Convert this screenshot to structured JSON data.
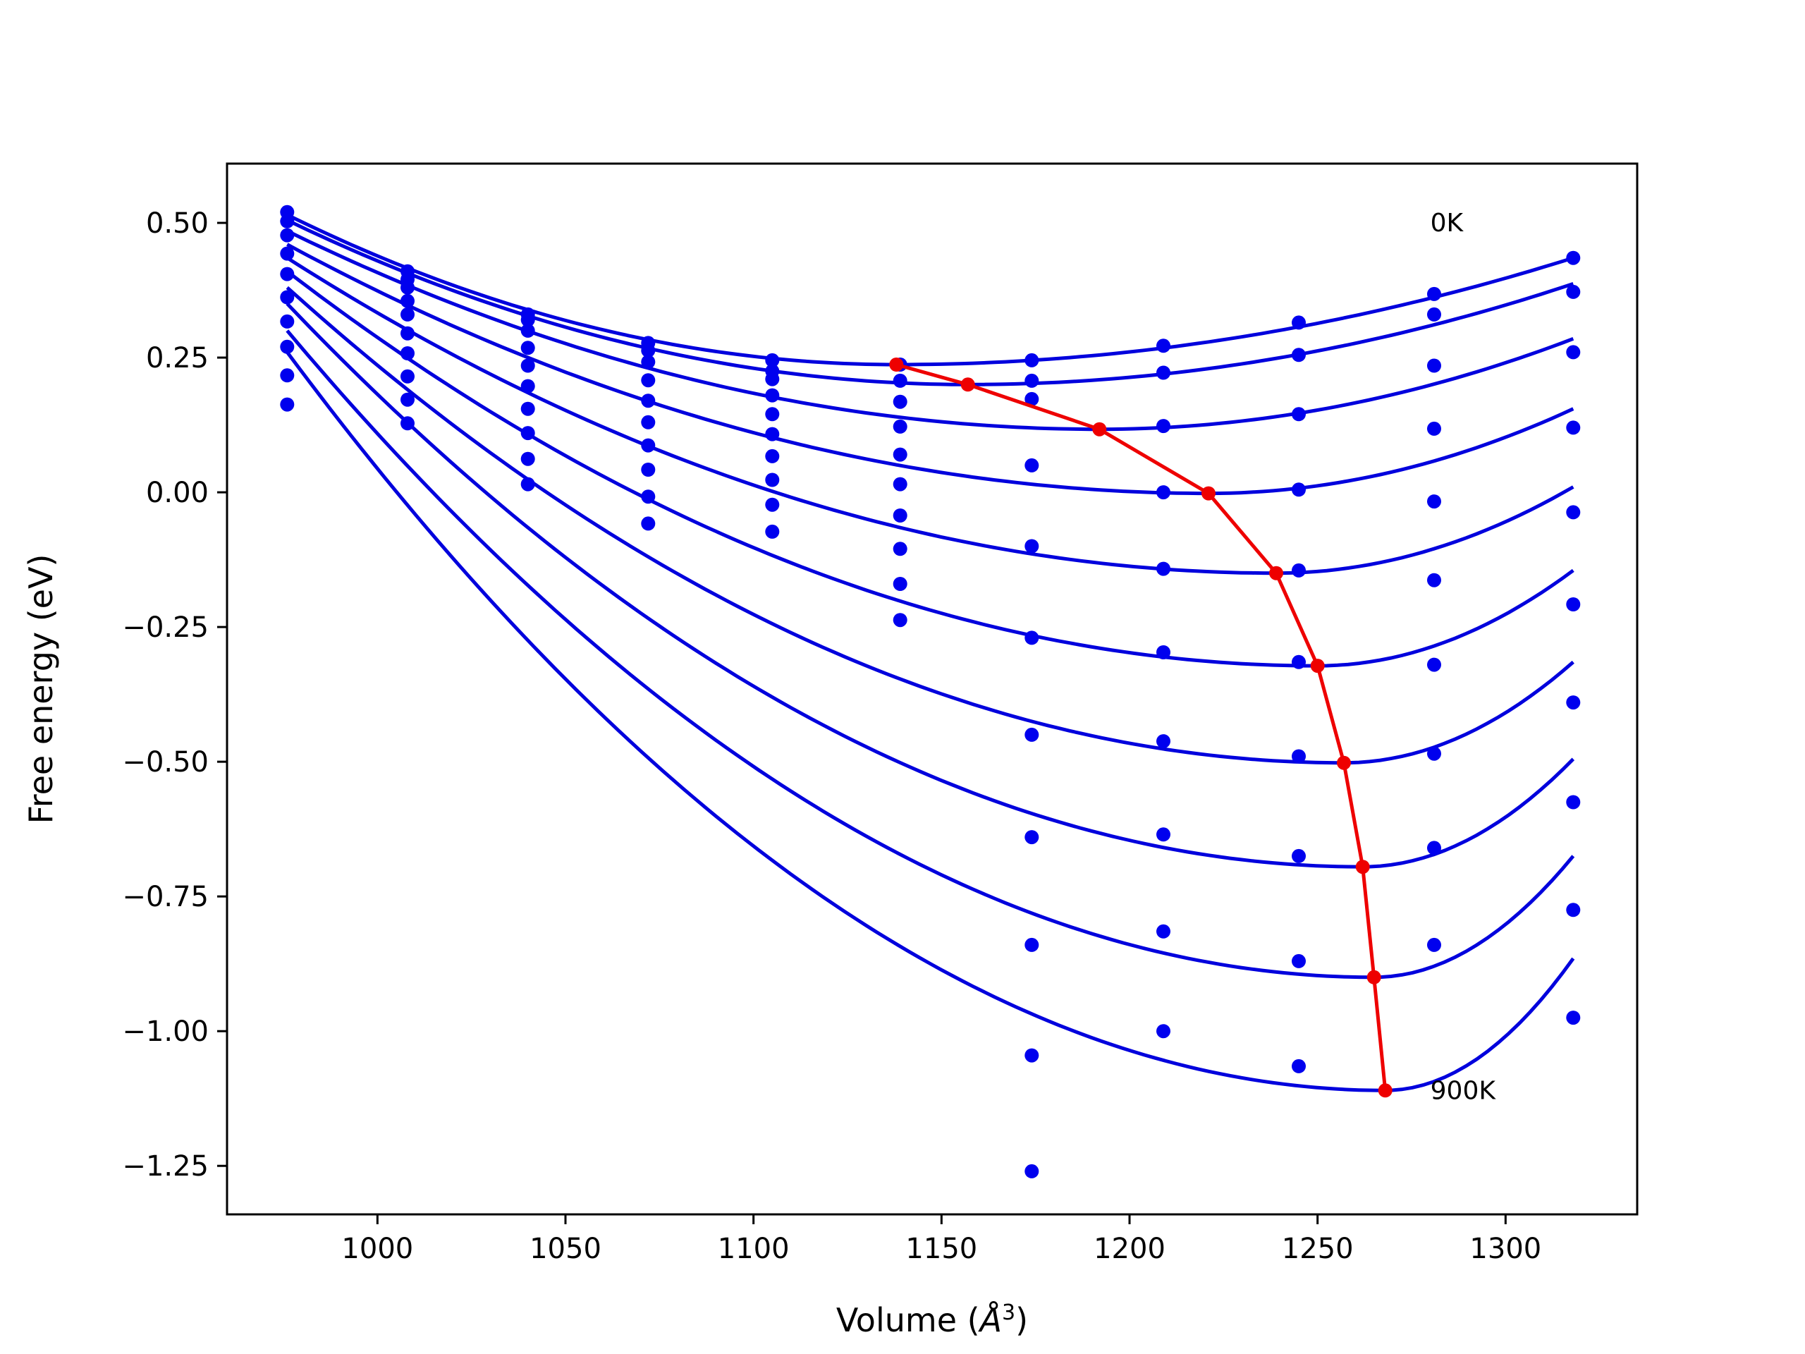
{
  "chart_data": {
    "type": "scatter",
    "title": "",
    "xlabel": "Volume (",
    "xlabel_unit": "Å",
    "xlabel_exp": "3",
    "xlabel_close": ")",
    "ylabel": "Free energy (eV)",
    "xlim": [
      960,
      1335
    ],
    "ylim": [
      -1.34,
      0.61
    ],
    "xticks": [
      1000,
      1050,
      1100,
      1150,
      1200,
      1250,
      1300
    ],
    "yticks": [
      0.5,
      0.25,
      0.0,
      -0.25,
      -0.5,
      -0.75,
      -1.0,
      -1.25
    ],
    "ytick_labels": [
      "0.50",
      "0.25",
      "0.00",
      "−0.25",
      "−0.50",
      "−0.75",
      "−1.00",
      "−1.25"
    ],
    "grid": false,
    "annotations": [
      {
        "text": "0K",
        "x": 1280,
        "y": 0.5
      },
      {
        "text": "900K",
        "x": 1280,
        "y": -1.11
      }
    ],
    "colors": {
      "fit_curves": "#0000dd",
      "points": "#0000ee",
      "minimum_path": "#ee0000"
    },
    "volumes": [
      976,
      1008,
      1040,
      1072,
      1105,
      1139,
      1174,
      1209,
      1245,
      1281,
      1318
    ],
    "series": [
      {
        "label": "0K",
        "values": [
          0.52,
          0.41,
          0.33,
          0.277,
          0.245,
          0.237,
          0.245,
          0.272,
          0.315,
          0.368,
          0.435
        ]
      },
      {
        "values": [
          0.503,
          0.395,
          0.32,
          0.263,
          0.225,
          0.207,
          0.207,
          0.222,
          0.255,
          0.33,
          0.372
        ]
      },
      {
        "values": [
          0.477,
          0.38,
          0.3,
          0.242,
          0.21,
          0.168,
          0.173,
          0.123,
          0.145,
          0.235,
          0.26
        ]
      },
      {
        "values": [
          0.443,
          0.355,
          0.268,
          0.208,
          0.18,
          0.122,
          0.05,
          0.0,
          0.005,
          0.118,
          0.12
        ]
      },
      {
        "values": [
          0.405,
          0.33,
          0.235,
          0.17,
          0.145,
          0.07,
          -0.1,
          -0.142,
          -0.145,
          -0.017,
          -0.037
        ]
      },
      {
        "values": [
          0.362,
          0.295,
          0.197,
          0.13,
          0.108,
          0.015,
          -0.27,
          -0.297,
          -0.315,
          -0.163,
          -0.208
        ]
      },
      {
        "values": [
          0.317,
          0.258,
          0.155,
          0.087,
          0.067,
          -0.043,
          -0.45,
          -0.462,
          -0.49,
          -0.32,
          -0.39
        ]
      },
      {
        "values": [
          0.27,
          0.215,
          0.11,
          0.042,
          0.023,
          -0.105,
          -0.64,
          -0.635,
          -0.675,
          -0.485,
          -0.575
        ]
      },
      {
        "values": [
          0.217,
          0.172,
          0.062,
          -0.008,
          -0.023,
          -0.17,
          -0.84,
          -0.815,
          -0.87,
          -0.66,
          -0.775
        ]
      },
      {
        "label": "900K",
        "values": [
          0.163,
          0.128,
          0.015,
          -0.058,
          -0.073,
          -0.237,
          -1.045,
          -1.0,
          -1.065,
          -0.84,
          -0.975
        ]
      }
    ],
    "curve_extra": [
      null,
      null,
      null,
      null,
      null,
      null,
      -1.26,
      null,
      null,
      null,
      null
    ],
    "fits": [
      {
        "vmin": 1138,
        "emin": 0.237
      },
      {
        "vmin": 1157,
        "emin": 0.2
      },
      {
        "vmin": 1192,
        "emin": 0.117
      },
      {
        "vmin": 1221,
        "emin": -0.002
      },
      {
        "vmin": 1239,
        "emin": -0.15
      },
      {
        "vmin": 1250,
        "emin": -0.322
      },
      {
        "vmin": 1257,
        "emin": -0.502
      },
      {
        "vmin": 1262,
        "emin": -0.695
      },
      {
        "vmin": 1265,
        "emin": -0.9
      },
      {
        "vmin": 1268,
        "emin": -1.11
      }
    ],
    "fit_endpoints": [
      {
        "e_left": 0.515,
        "e_right": 0.435
      },
      {
        "e_left": 0.505,
        "e_right": 0.387
      },
      {
        "e_left": 0.485,
        "e_right": 0.285
      },
      {
        "e_left": 0.46,
        "e_right": 0.155
      },
      {
        "e_left": 0.435,
        "e_right": 0.01
      },
      {
        "e_left": 0.41,
        "e_right": -0.145
      },
      {
        "e_left": 0.38,
        "e_right": -0.315
      },
      {
        "e_left": 0.35,
        "e_right": -0.495
      },
      {
        "e_left": 0.3,
        "e_right": -0.675
      },
      {
        "e_left": 0.26,
        "e_right": -0.865
      }
    ]
  }
}
